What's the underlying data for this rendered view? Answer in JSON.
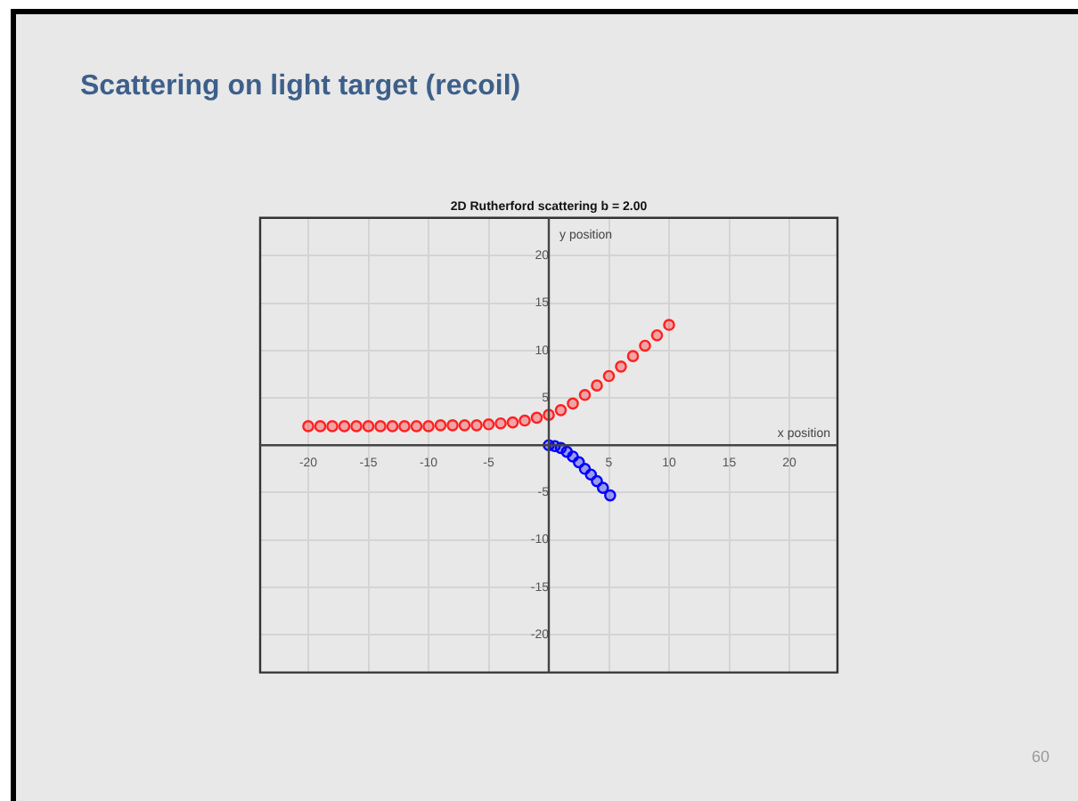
{
  "chart_data": {
    "type": "scatter",
    "title": "Scattering on light target (recoil)",
    "subtitle": "2D Rutherford scattering b = 2.00",
    "xlabel": "x position",
    "ylabel": "y position",
    "series": [
      {
        "color": "#ff2020",
        "x": [
          -20,
          -19,
          -18,
          -17,
          -16,
          -15,
          -14,
          -13,
          -12,
          -11,
          -10,
          -9,
          -8,
          -7,
          -6,
          -5,
          -4,
          -3,
          -2,
          -1,
          0,
          1,
          2,
          3,
          4,
          5,
          6,
          7,
          8,
          9,
          10
        ],
        "values": [
          2.0,
          2.0,
          2.0,
          2.0,
          2.0,
          2.0,
          2.0,
          2.0,
          2.0,
          2.0,
          2.0,
          2.1,
          2.1,
          2.1,
          2.1,
          2.2,
          2.3,
          2.4,
          2.6,
          2.9,
          3.2,
          3.7,
          4.4,
          5.3,
          6.3,
          7.3,
          8.3,
          9.4,
          10.5,
          11.6,
          12.7
        ]
      },
      {
        "color": "#0000ff",
        "x": [
          0,
          0.5,
          1,
          1.5,
          2,
          2.5,
          3,
          3.5,
          4,
          4.5,
          5.1
        ],
        "values": [
          0,
          -0.1,
          -0.3,
          -0.7,
          -1.2,
          -1.8,
          -2.5,
          -3.1,
          -3.8,
          -4.5,
          -5.3
        ]
      }
    ],
    "xlim": [
      -24,
      24
    ],
    "ylim": [
      -24,
      24
    ],
    "xticks": [
      -20,
      -15,
      -10,
      -5,
      5,
      10,
      15,
      20
    ],
    "yticks": [
      -20,
      -15,
      -10,
      -5,
      5,
      10,
      15,
      20
    ],
    "grid": true,
    "legend": false,
    "marker": "circle",
    "annotations": [
      "60"
    ]
  }
}
